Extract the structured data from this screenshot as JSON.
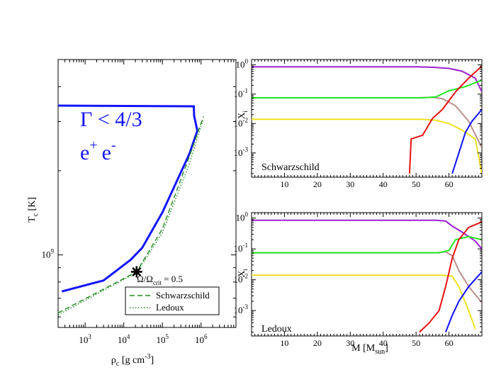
{
  "chart_data": [
    {
      "id": "left",
      "type": "line",
      "xscale": "log",
      "yscale": "log",
      "xlim": [
        200,
        8000000
      ],
      "ylim": [
        550000000,
        5000000000
      ],
      "xlabel": {
        "base": "ρ",
        "sub": "c",
        "rest": " [g cm",
        "sup": "-3",
        "close": "]"
      },
      "ylabel": {
        "base": "T",
        "sub": "c",
        "rest": " [K]"
      },
      "xticks": [
        {
          "value": 1000,
          "base": "10",
          "exp": "3"
        },
        {
          "value": 10000,
          "base": "10",
          "exp": "4"
        },
        {
          "value": 100000,
          "base": "10",
          "exp": "5"
        },
        {
          "value": 1000000,
          "base": "10",
          "exp": "6"
        }
      ],
      "yticks": [
        {
          "value": 1000000000,
          "base": "10",
          "exp": "9"
        }
      ],
      "annotations": {
        "gamma": "Γ < 4/3",
        "pair": {
          "e1": "e",
          "sup1": "+",
          "e2": "e",
          "sup2": "-"
        },
        "omega": {
          "a": "Ω/Ω",
          "sub": "crit",
          "b": " = 0.5"
        }
      },
      "legend": {
        "position": "bottom-right",
        "items": [
          "Schwarzschild",
          "Ledoux"
        ]
      },
      "star_point": {
        "x": 21500,
        "y": 870000000
      },
      "series": [
        {
          "name": "Γ < 4/3 boundary",
          "color": "#1414ff",
          "style": "solid",
          "points": [
            [
              200,
              3420000000
            ],
            [
              650000,
              3400000000
            ],
            [
              660000,
              3150000000
            ],
            [
              800000,
              2780000000
            ],
            [
              500000,
              2300000000
            ],
            [
              100000,
              1420000000
            ],
            [
              30000,
              1060000000
            ],
            [
              15000,
              960000000
            ],
            [
              3000,
              810000000
            ],
            [
              250,
              740000000
            ]
          ]
        },
        {
          "name": "Schwarzschild",
          "color": "#1e8c1e",
          "style": "dashed",
          "points": [
            [
              200,
              620000000
            ],
            [
              21500,
              870000000
            ],
            [
              100000,
              1240000000
            ],
            [
              500000,
              2250000000
            ],
            [
              1150000,
              3130000000
            ]
          ]
        },
        {
          "name": "Ledoux",
          "color": "#1e8c1e",
          "style": "dotted",
          "points": [
            [
              200,
              610000000
            ],
            [
              21500,
              865000000
            ],
            [
              100000,
              1200000000
            ],
            [
              500000,
              2120000000
            ],
            [
              1150000,
              3080000000
            ]
          ]
        }
      ]
    },
    {
      "id": "top-right",
      "type": "line",
      "yscale": "log",
      "xlim": [
        0,
        70
      ],
      "ylim": [
        0.00015,
        1.5
      ],
      "label": "Schwarzschild",
      "ylabel": {
        "base": "X",
        "sub": "i"
      },
      "xticks": [
        "10",
        "20",
        "30",
        "40",
        "50",
        "60"
      ],
      "yticks": [
        {
          "value": 1,
          "base": "10",
          "exp": "0"
        },
        {
          "value": 0.1,
          "base": "10",
          "exp": "-1"
        },
        {
          "value": 0.01,
          "base": "10",
          "exp": "-2"
        },
        {
          "value": 0.001,
          "base": "10",
          "exp": "-3"
        }
      ],
      "series": [
        {
          "name": "purple",
          "color": "#9b20d0",
          "points": [
            [
              0,
              0.85
            ],
            [
              50,
              0.85
            ],
            [
              55,
              0.82
            ],
            [
              60,
              0.75
            ],
            [
              64,
              0.6
            ],
            [
              68,
              0.35
            ],
            [
              70,
              0.12
            ]
          ]
        },
        {
          "name": "brown",
          "color": "#bc8f8f",
          "points": [
            [
              0,
              0.075
            ],
            [
              50,
              0.075
            ],
            [
              55,
              0.078
            ],
            [
              58,
              0.07
            ],
            [
              62,
              0.04
            ],
            [
              66,
              0.012
            ],
            [
              70,
              0.0015
            ]
          ]
        },
        {
          "name": "green",
          "color": "#22e822",
          "points": [
            [
              0,
              0.075
            ],
            [
              52,
              0.075
            ],
            [
              56,
              0.08
            ],
            [
              60,
              0.13
            ],
            [
              65,
              0.18
            ],
            [
              70,
              0.3
            ]
          ]
        },
        {
          "name": "yellow",
          "color": "#f0e020",
          "points": [
            [
              0,
              0.014
            ],
            [
              52,
              0.014
            ],
            [
              56,
              0.013
            ],
            [
              60,
              0.01
            ],
            [
              64,
              0.006
            ],
            [
              68,
              0.003
            ],
            [
              70,
              0.0002
            ]
          ]
        },
        {
          "name": "red",
          "color": "#e81010",
          "points": [
            [
              48,
              0.0002
            ],
            [
              48.5,
              0.003
            ],
            [
              52,
              0.004
            ],
            [
              55,
              0.015
            ],
            [
              58,
              0.03
            ],
            [
              62,
              0.12
            ],
            [
              66,
              0.35
            ],
            [
              70,
              0.9
            ]
          ]
        },
        {
          "name": "blue",
          "color": "#1010ff",
          "points": [
            [
              61,
              0.0002
            ],
            [
              63,
              0.001
            ],
            [
              65,
              0.005
            ],
            [
              67,
              0.012
            ],
            [
              70,
              0.03
            ]
          ]
        }
      ]
    },
    {
      "id": "bottom-right",
      "type": "line",
      "yscale": "log",
      "xlim": [
        0,
        70
      ],
      "ylim": [
        0.00015,
        1.5
      ],
      "label": "Ledoux",
      "xlabel": {
        "base": "M [M",
        "sub": "sun",
        "close": "]"
      },
      "ylabel": {
        "base": "X",
        "sub": "i"
      },
      "xticks": [
        "10",
        "20",
        "30",
        "40",
        "50",
        "60"
      ],
      "yticks": [
        {
          "value": 1,
          "base": "10",
          "exp": "0"
        },
        {
          "value": 0.1,
          "base": "10",
          "exp": "-1"
        },
        {
          "value": 0.01,
          "base": "10",
          "exp": "-2"
        },
        {
          "value": 0.001,
          "base": "10",
          "exp": "-3"
        }
      ],
      "series": [
        {
          "name": "purple",
          "color": "#9b20d0",
          "points": [
            [
              0,
              0.85
            ],
            [
              56,
              0.85
            ],
            [
              59,
              0.8
            ],
            [
              61,
              0.55
            ],
            [
              64,
              0.35
            ],
            [
              68,
              0.18
            ],
            [
              70,
              0.1
            ]
          ]
        },
        {
          "name": "brown",
          "color": "#bc8f8f",
          "points": [
            [
              0,
              0.075
            ],
            [
              56,
              0.075
            ],
            [
              59,
              0.08
            ],
            [
              61,
              0.06
            ],
            [
              63,
              0.02
            ],
            [
              66,
              0.006
            ],
            [
              70,
              0.0018
            ]
          ]
        },
        {
          "name": "green",
          "color": "#22e822",
          "points": [
            [
              0,
              0.075
            ],
            [
              57,
              0.075
            ],
            [
              60,
              0.09
            ],
            [
              62,
              0.2
            ],
            [
              66,
              0.25
            ],
            [
              70,
              0.2
            ]
          ]
        },
        {
          "name": "yellow",
          "color": "#f0e020",
          "points": [
            [
              0,
              0.014
            ],
            [
              58,
              0.014
            ],
            [
              61,
              0.013
            ],
            [
              63,
              0.006
            ],
            [
              66,
              0.001
            ],
            [
              68,
              0.00025
            ]
          ]
        },
        {
          "name": "red",
          "color": "#e81010",
          "points": [
            [
              51,
              0.0002
            ],
            [
              54,
              0.0004
            ],
            [
              57,
              0.001
            ],
            [
              59,
              0.006
            ],
            [
              61,
              0.05
            ],
            [
              63,
              0.2
            ],
            [
              66,
              0.5
            ],
            [
              70,
              0.75
            ]
          ]
        },
        {
          "name": "blue",
          "color": "#1010ff",
          "points": [
            [
              59,
              0.0002
            ],
            [
              61,
              0.0007
            ],
            [
              63,
              0.002
            ],
            [
              66,
              0.006
            ],
            [
              70,
              0.018
            ]
          ]
        }
      ]
    }
  ]
}
